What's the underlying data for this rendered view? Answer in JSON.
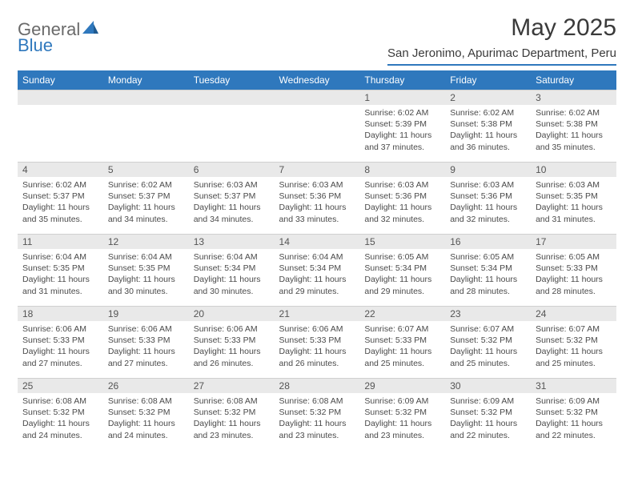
{
  "logo": {
    "text1": "General",
    "text2": "Blue",
    "color1": "#6a6a6a",
    "color2": "#2f78bd"
  },
  "header": {
    "title": "May 2025",
    "location": "San Jeronimo, Apurimac Department, Peru"
  },
  "colors": {
    "header_bg": "#2f78bd",
    "header_text": "#ffffff",
    "daynum_bg": "#e9e9e9",
    "daynum_text": "#555555",
    "detail_text": "#4a4a4a",
    "border": "#d0d0d0"
  },
  "weekdays": [
    "Sunday",
    "Monday",
    "Tuesday",
    "Wednesday",
    "Thursday",
    "Friday",
    "Saturday"
  ],
  "weeks": [
    [
      null,
      null,
      null,
      null,
      {
        "n": "1",
        "sr": "6:02 AM",
        "ss": "5:39 PM",
        "dl": "11 hours and 37 minutes."
      },
      {
        "n": "2",
        "sr": "6:02 AM",
        "ss": "5:38 PM",
        "dl": "11 hours and 36 minutes."
      },
      {
        "n": "3",
        "sr": "6:02 AM",
        "ss": "5:38 PM",
        "dl": "11 hours and 35 minutes."
      }
    ],
    [
      {
        "n": "4",
        "sr": "6:02 AM",
        "ss": "5:37 PM",
        "dl": "11 hours and 35 minutes."
      },
      {
        "n": "5",
        "sr": "6:02 AM",
        "ss": "5:37 PM",
        "dl": "11 hours and 34 minutes."
      },
      {
        "n": "6",
        "sr": "6:03 AM",
        "ss": "5:37 PM",
        "dl": "11 hours and 34 minutes."
      },
      {
        "n": "7",
        "sr": "6:03 AM",
        "ss": "5:36 PM",
        "dl": "11 hours and 33 minutes."
      },
      {
        "n": "8",
        "sr": "6:03 AM",
        "ss": "5:36 PM",
        "dl": "11 hours and 32 minutes."
      },
      {
        "n": "9",
        "sr": "6:03 AM",
        "ss": "5:36 PM",
        "dl": "11 hours and 32 minutes."
      },
      {
        "n": "10",
        "sr": "6:03 AM",
        "ss": "5:35 PM",
        "dl": "11 hours and 31 minutes."
      }
    ],
    [
      {
        "n": "11",
        "sr": "6:04 AM",
        "ss": "5:35 PM",
        "dl": "11 hours and 31 minutes."
      },
      {
        "n": "12",
        "sr": "6:04 AM",
        "ss": "5:35 PM",
        "dl": "11 hours and 30 minutes."
      },
      {
        "n": "13",
        "sr": "6:04 AM",
        "ss": "5:34 PM",
        "dl": "11 hours and 30 minutes."
      },
      {
        "n": "14",
        "sr": "6:04 AM",
        "ss": "5:34 PM",
        "dl": "11 hours and 29 minutes."
      },
      {
        "n": "15",
        "sr": "6:05 AM",
        "ss": "5:34 PM",
        "dl": "11 hours and 29 minutes."
      },
      {
        "n": "16",
        "sr": "6:05 AM",
        "ss": "5:34 PM",
        "dl": "11 hours and 28 minutes."
      },
      {
        "n": "17",
        "sr": "6:05 AM",
        "ss": "5:33 PM",
        "dl": "11 hours and 28 minutes."
      }
    ],
    [
      {
        "n": "18",
        "sr": "6:06 AM",
        "ss": "5:33 PM",
        "dl": "11 hours and 27 minutes."
      },
      {
        "n": "19",
        "sr": "6:06 AM",
        "ss": "5:33 PM",
        "dl": "11 hours and 27 minutes."
      },
      {
        "n": "20",
        "sr": "6:06 AM",
        "ss": "5:33 PM",
        "dl": "11 hours and 26 minutes."
      },
      {
        "n": "21",
        "sr": "6:06 AM",
        "ss": "5:33 PM",
        "dl": "11 hours and 26 minutes."
      },
      {
        "n": "22",
        "sr": "6:07 AM",
        "ss": "5:33 PM",
        "dl": "11 hours and 25 minutes."
      },
      {
        "n": "23",
        "sr": "6:07 AM",
        "ss": "5:32 PM",
        "dl": "11 hours and 25 minutes."
      },
      {
        "n": "24",
        "sr": "6:07 AM",
        "ss": "5:32 PM",
        "dl": "11 hours and 25 minutes."
      }
    ],
    [
      {
        "n": "25",
        "sr": "6:08 AM",
        "ss": "5:32 PM",
        "dl": "11 hours and 24 minutes."
      },
      {
        "n": "26",
        "sr": "6:08 AM",
        "ss": "5:32 PM",
        "dl": "11 hours and 24 minutes."
      },
      {
        "n": "27",
        "sr": "6:08 AM",
        "ss": "5:32 PM",
        "dl": "11 hours and 23 minutes."
      },
      {
        "n": "28",
        "sr": "6:08 AM",
        "ss": "5:32 PM",
        "dl": "11 hours and 23 minutes."
      },
      {
        "n": "29",
        "sr": "6:09 AM",
        "ss": "5:32 PM",
        "dl": "11 hours and 23 minutes."
      },
      {
        "n": "30",
        "sr": "6:09 AM",
        "ss": "5:32 PM",
        "dl": "11 hours and 22 minutes."
      },
      {
        "n": "31",
        "sr": "6:09 AM",
        "ss": "5:32 PM",
        "dl": "11 hours and 22 minutes."
      }
    ]
  ],
  "labels": {
    "sunrise": "Sunrise:",
    "sunset": "Sunset:",
    "daylight": "Daylight:"
  }
}
